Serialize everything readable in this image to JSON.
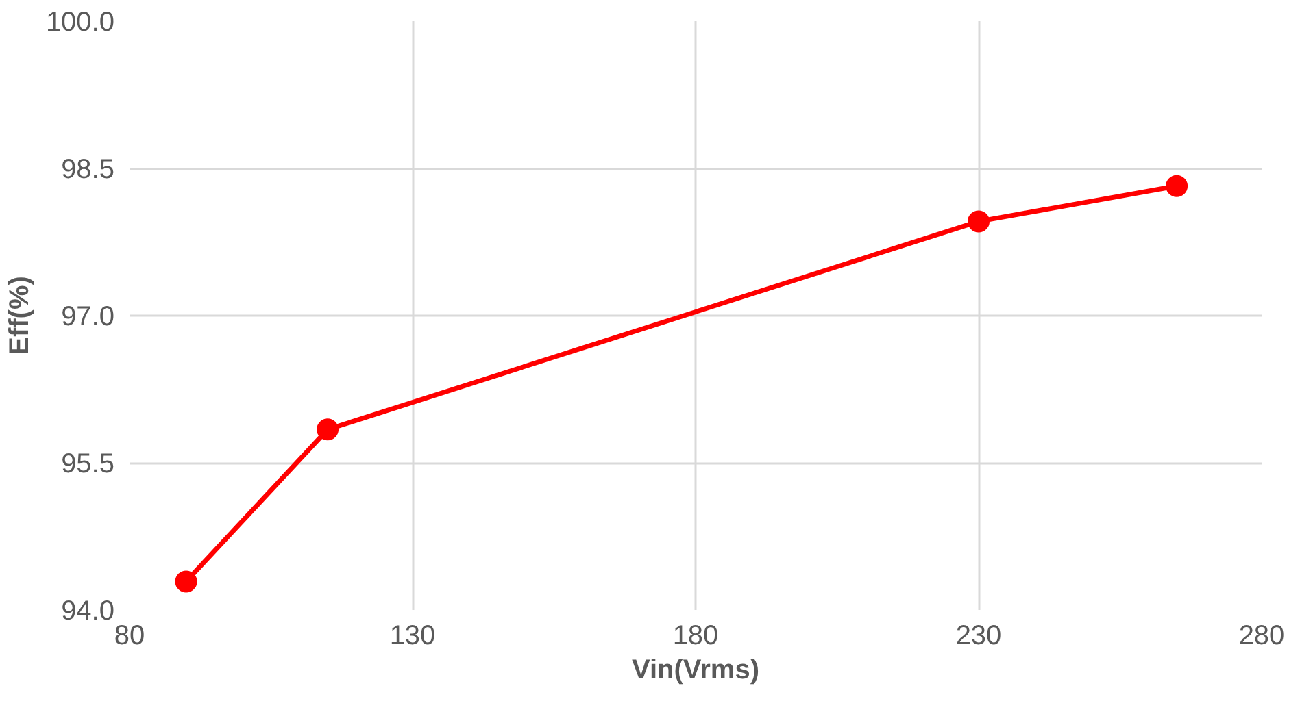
{
  "chart_data": {
    "type": "line",
    "xlabel": "Vin(Vrms)",
    "ylabel": "Eff(%)",
    "x": [
      90,
      115,
      230,
      265
    ],
    "series": [
      {
        "color": "#ff0000",
        "values": [
          94.29,
          95.84,
          97.96,
          98.32
        ]
      }
    ],
    "xlim": [
      80,
      280
    ],
    "xticks": [
      80,
      130,
      180,
      230,
      280
    ],
    "ylim": [
      94.0,
      100.0
    ],
    "yticks": [
      {
        "value": 94.0,
        "label": "94.0"
      },
      {
        "value": 95.5,
        "label": "95.5"
      },
      {
        "value": 97.0,
        "label": "97.0"
      },
      {
        "value": 98.5,
        "label": "98.5"
      },
      {
        "value": 100.0,
        "label": "100.0"
      }
    ],
    "grid": true,
    "marker": "circle",
    "line_style": "solid"
  }
}
